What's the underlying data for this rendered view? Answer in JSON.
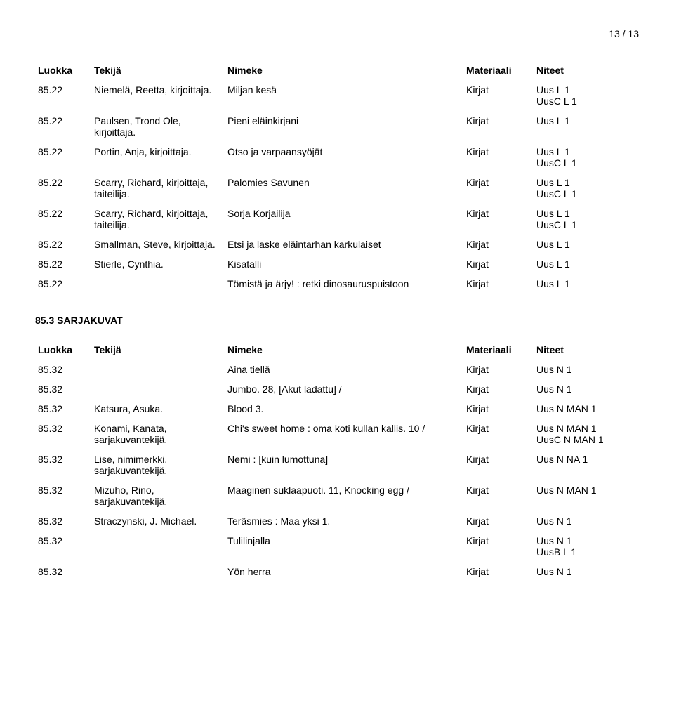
{
  "pageNumber": "13 / 13",
  "headers": {
    "luokka": "Luokka",
    "tekija": "Tekijä",
    "nimeke": "Nimeke",
    "materiaali": "Materiaali",
    "niteet": "Niteet"
  },
  "section1": {
    "rows": [
      {
        "luokka": "85.22",
        "tekija": "Niemelä, Reetta, kirjoittaja.",
        "nimeke": "Miljan kesä",
        "materiaali": "Kirjat",
        "niteet": "Uus L 1\nUusC L 1"
      },
      {
        "luokka": "85.22",
        "tekija": "Paulsen, Trond Ole, kirjoittaja.",
        "nimeke": "Pieni eläinkirjani",
        "materiaali": "Kirjat",
        "niteet": "Uus L 1"
      },
      {
        "luokka": "85.22",
        "tekija": "Portin, Anja, kirjoittaja.",
        "nimeke": "Otso ja varpaansyöjät",
        "materiaali": "Kirjat",
        "niteet": "Uus L 1\nUusC L 1"
      },
      {
        "luokka": "85.22",
        "tekija": "Scarry, Richard, kirjoittaja, taiteilija.",
        "nimeke": "Palomies Savunen",
        "materiaali": "Kirjat",
        "niteet": "Uus L 1\nUusC L 1"
      },
      {
        "luokka": "85.22",
        "tekija": "Scarry, Richard, kirjoittaja, taiteilija.",
        "nimeke": "Sorja Korjailija",
        "materiaali": "Kirjat",
        "niteet": "Uus L 1\nUusC L 1"
      },
      {
        "luokka": "85.22",
        "tekija": "Smallman, Steve, kirjoittaja.",
        "nimeke": "Etsi ja laske eläintarhan karkulaiset",
        "materiaali": "Kirjat",
        "niteet": "Uus L 1"
      },
      {
        "luokka": "85.22",
        "tekija": "Stierle, Cynthia.",
        "nimeke": "Kisatalli",
        "materiaali": "Kirjat",
        "niteet": "Uus L 1"
      },
      {
        "luokka": "85.22",
        "tekija": "",
        "nimeke": "Tömistä ja ärjy! : retki dinosauruspuistoon",
        "materiaali": "Kirjat",
        "niteet": "Uus L 1"
      }
    ]
  },
  "section2": {
    "title": "85.3 SARJAKUVAT",
    "rows": [
      {
        "luokka": "85.32",
        "tekija": "",
        "nimeke": "Aina tiellä",
        "materiaali": "Kirjat",
        "niteet": "Uus N 1"
      },
      {
        "luokka": "85.32",
        "tekija": "",
        "nimeke": "Jumbo. 28, [Akut ladattu] /",
        "materiaali": "Kirjat",
        "niteet": "Uus N 1"
      },
      {
        "luokka": "85.32",
        "tekija": "Katsura, Asuka.",
        "nimeke": "Blood 3.",
        "materiaali": "Kirjat",
        "niteet": "Uus N MAN 1"
      },
      {
        "luokka": "85.32",
        "tekija": "Konami, Kanata, sarjakuvantekijä.",
        "nimeke": "Chi's sweet home : oma koti kullan kallis. 10 /",
        "materiaali": "Kirjat",
        "niteet": "Uus N MAN 1\nUusC N MAN 1"
      },
      {
        "luokka": "85.32",
        "tekija": "Lise, nimimerkki, sarjakuvantekijä.",
        "nimeke": "Nemi : [kuin lumottuna]",
        "materiaali": "Kirjat",
        "niteet": "Uus N NA 1"
      },
      {
        "luokka": "85.32",
        "tekija": "Mizuho, Rino, sarjakuvantekijä.",
        "nimeke": "Maaginen suklaapuoti. 11, Knocking egg /",
        "materiaali": "Kirjat",
        "niteet": "Uus N MAN 1"
      },
      {
        "luokka": "85.32",
        "tekija": "Straczynski, J. Michael.",
        "nimeke": "Teräsmies : Maa yksi 1.",
        "materiaali": "Kirjat",
        "niteet": "Uus N 1"
      },
      {
        "luokka": "85.32",
        "tekija": "",
        "nimeke": "Tulilinjalla",
        "materiaali": "Kirjat",
        "niteet": "Uus N 1\nUusB L 1"
      },
      {
        "luokka": "85.32",
        "tekija": "",
        "nimeke": "Yön herra",
        "materiaali": "Kirjat",
        "niteet": "Uus N 1"
      }
    ]
  }
}
